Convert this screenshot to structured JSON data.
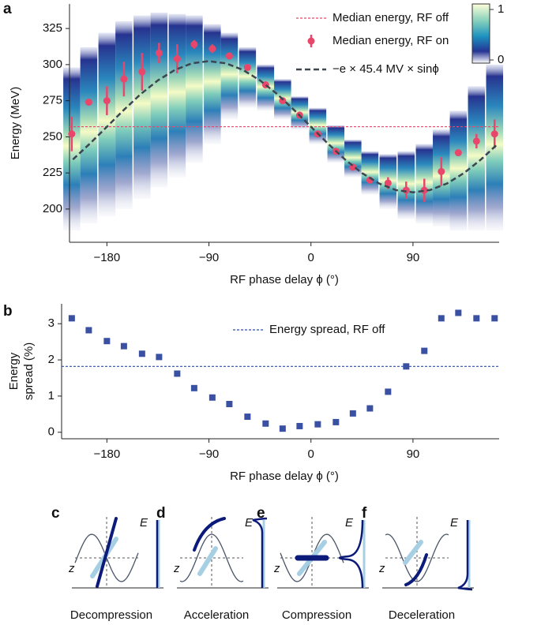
{
  "chart_data": [
    {
      "type": "heatmap",
      "panel": "a",
      "ylabel": "Energy (MeV)",
      "xlabel": "RF phase delay ϕ (°)",
      "xlim": [
        -213,
        166
      ],
      "ylim": [
        177,
        342
      ],
      "xticks": [
        {
          "value": -180,
          "label": "−180"
        },
        {
          "value": -90,
          "label": "−90"
        },
        0,
        90
      ],
      "yticks": [
        200,
        225,
        250,
        275,
        300,
        325
      ],
      "heatmap": {
        "x": [
          -211,
          -196,
          -180,
          -165,
          -149,
          -134,
          -118,
          -103,
          -87,
          -72,
          -56,
          -40,
          -25,
          -10,
          6,
          22,
          37,
          52,
          68,
          84,
          100,
          115,
          130,
          146,
          162
        ],
        "high": [
          298,
          312,
          322,
          330,
          334,
          336,
          335,
          334,
          328,
          322,
          312,
          300,
          290,
          278,
          270,
          258,
          248,
          240,
          238,
          240,
          245,
          255,
          268,
          285,
          300
        ],
        "low": [
          185,
          190,
          195,
          200,
          207,
          215,
          222,
          232,
          245,
          262,
          270,
          268,
          262,
          255,
          245,
          232,
          222,
          210,
          200,
          193,
          190,
          188,
          185,
          185,
          185
        ],
        "colorbar_ticks": [
          0,
          1
        ]
      },
      "series": [
        {
          "name": "Median energy, RF off",
          "color": "#e8476b",
          "hline": 257
        },
        {
          "name": "Median energy, RF on",
          "color": "#e8476b",
          "x": [
            -211,
            -196,
            -180,
            -165,
            -149,
            -134,
            -118,
            -103,
            -87,
            -72,
            -56,
            -40,
            -25,
            -10,
            6,
            22,
            37,
            52,
            68,
            84,
            100,
            115,
            130,
            146,
            162
          ],
          "values": [
            252,
            274,
            275,
            290,
            295,
            308,
            304,
            314,
            311,
            306,
            298,
            286,
            275,
            265,
            252,
            240,
            229,
            220,
            218,
            213,
            213,
            226,
            239,
            247,
            252
          ],
          "errors": [
            12,
            2,
            10,
            12,
            13,
            7,
            10,
            3,
            3,
            2,
            2,
            2,
            1,
            1,
            1,
            1,
            1,
            1,
            4,
            6,
            8,
            10,
            2,
            5,
            10
          ]
        },
        {
          "name": "−e × 45.4 MV × sinϕ",
          "color": "#3b4650",
          "x": [
            -210,
            -195,
            -180,
            -165,
            -150,
            -135,
            -120,
            -105,
            -90,
            -75,
            -60,
            -45,
            -30,
            -15,
            0,
            15,
            30,
            45,
            60,
            75,
            90,
            105,
            120,
            135,
            150,
            165
          ],
          "values": [
            234.3,
            245.3,
            257,
            268.7,
            279.7,
            289.1,
            296.3,
            300.9,
            302.4,
            300.9,
            296.3,
            289.1,
            279.7,
            268.7,
            257,
            245.3,
            234.3,
            224.9,
            217.7,
            213.1,
            211.6,
            213.1,
            217.7,
            224.9,
            234.3,
            245.3
          ]
        }
      ]
    },
    {
      "type": "scatter",
      "panel": "b",
      "ylabel": [
        "Energy",
        "spread (%)"
      ],
      "xlabel": "RF phase delay ϕ (°)",
      "xlim": [
        -213,
        166
      ],
      "ylim": [
        -0.18,
        3.55
      ],
      "xticks": [
        {
          "value": -180,
          "label": "−180"
        },
        {
          "value": -90,
          "label": "−90"
        },
        0,
        90
      ],
      "yticks": [
        0,
        1,
        2,
        3
      ],
      "series": [
        {
          "name": "Energy spread, RF off",
          "color": "#2f4ab0",
          "hline": 1.82
        },
        {
          "color": "#3a51a3",
          "x": [
            -211,
            -196,
            -180,
            -165,
            -149,
            -134,
            -118,
            -103,
            -87,
            -72,
            -56,
            -40,
            -25,
            -10,
            6,
            22,
            37,
            52,
            68,
            84,
            100,
            115,
            130,
            146,
            162
          ],
          "values": [
            3.15,
            2.82,
            2.52,
            2.38,
            2.17,
            2.08,
            1.62,
            1.22,
            0.96,
            0.78,
            0.43,
            0.24,
            0.1,
            0.17,
            0.22,
            0.28,
            0.52,
            0.66,
            1.12,
            1.82,
            2.25,
            3.15,
            3.3,
            3.15,
            3.15
          ]
        }
      ]
    }
  ],
  "panels": [
    {
      "letter": "c",
      "caption": "Decompression",
      "E": "E",
      "z": "z"
    },
    {
      "letter": "d",
      "caption": "Acceleration",
      "E": "E",
      "z": "z"
    },
    {
      "letter": "e",
      "caption": "Compression",
      "E": "E",
      "z": "z"
    },
    {
      "letter": "f",
      "caption": "Deceleration",
      "E": "E",
      "z": "z"
    }
  ]
}
